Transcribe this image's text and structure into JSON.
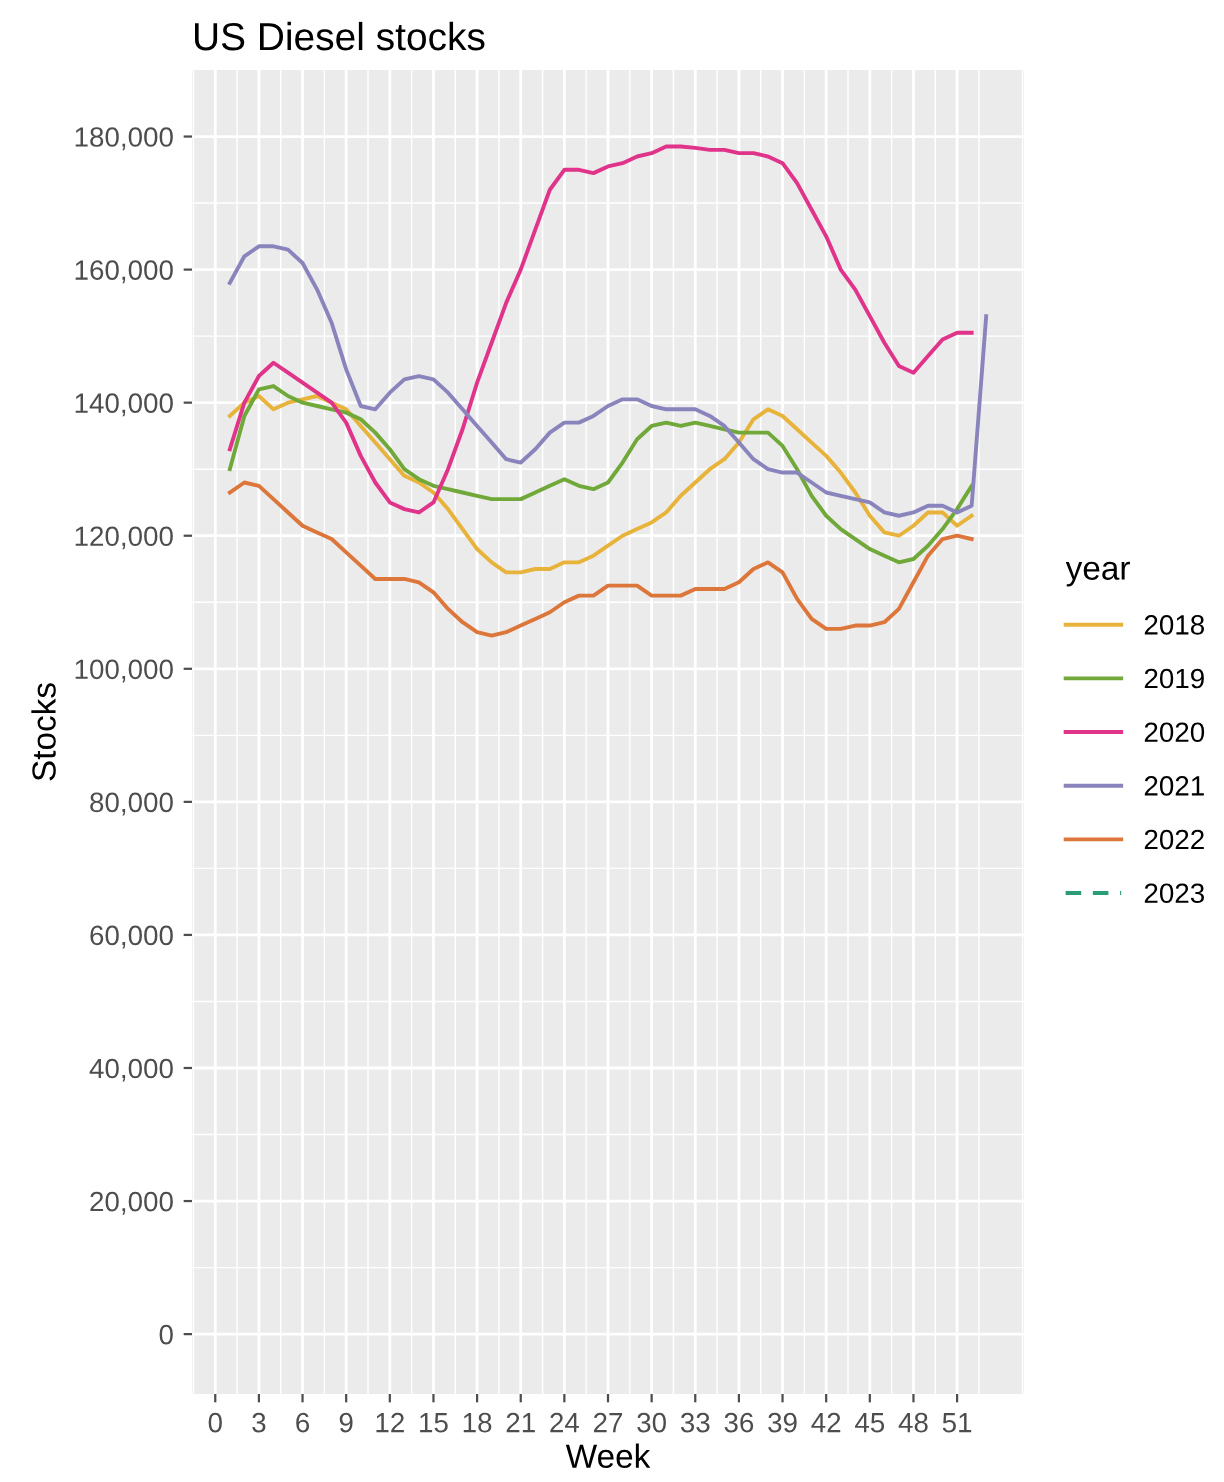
{
  "chart_data": {
    "type": "line",
    "title": "US Diesel stocks",
    "xlabel": "Week",
    "ylabel": "Stocks",
    "legend_title": "year",
    "legend": "right",
    "grid": true,
    "line_style": "solid",
    "x": [
      1,
      2,
      3,
      4,
      5,
      6,
      7,
      8,
      9,
      10,
      11,
      12,
      13,
      14,
      15,
      16,
      17,
      18,
      19,
      20,
      21,
      22,
      23,
      24,
      25,
      26,
      27,
      28,
      29,
      30,
      31,
      32,
      33,
      34,
      35,
      36,
      37,
      38,
      39,
      40,
      41,
      42,
      43,
      44,
      45,
      46,
      47,
      48,
      49,
      50,
      51,
      52
    ],
    "xlim": [
      -1.6,
      55.6
    ],
    "xticks": [
      0,
      3,
      6,
      9,
      12,
      15,
      18,
      21,
      24,
      27,
      30,
      33,
      36,
      39,
      42,
      45,
      48,
      51
    ],
    "ylim": [
      -9000,
      190000
    ],
    "yticks": [
      {
        "value": 0,
        "label": "0"
      },
      {
        "value": 20000,
        "label": "20,000"
      },
      {
        "value": 40000,
        "label": "40,000"
      },
      {
        "value": 60000,
        "label": "60,000"
      },
      {
        "value": 80000,
        "label": "80,000"
      },
      {
        "value": 100000,
        "label": "100,000"
      },
      {
        "value": 120000,
        "label": "120,000"
      },
      {
        "value": 140000,
        "label": "140,000"
      },
      {
        "value": 160000,
        "label": "160,000"
      },
      {
        "value": 180000,
        "label": "180,000"
      }
    ],
    "series": [
      {
        "name": "2018",
        "color": "#e8b33a",
        "values": [
          138000,
          140000,
          141000,
          139000,
          140000,
          140500,
          141000,
          140000,
          139000,
          136500,
          134000,
          131500,
          129000,
          128000,
          126500,
          124000,
          121000,
          118000,
          116000,
          114500,
          114500,
          115000,
          115000,
          116000,
          116000,
          117000,
          118500,
          120000,
          121000,
          122000,
          123500,
          126000,
          128000,
          130000,
          131500,
          134000,
          137500,
          139000,
          138000,
          136000,
          134000,
          132000,
          129500,
          126500,
          123000,
          120500,
          120000,
          121500,
          123500,
          123500,
          121500,
          123000
        ]
      },
      {
        "name": "2019",
        "color": "#71a83a",
        "values": [
          130000,
          138000,
          142000,
          142500,
          141000,
          140000,
          139500,
          139000,
          138500,
          137500,
          135500,
          133000,
          130000,
          128500,
          127500,
          127000,
          126500,
          126000,
          125500,
          125500,
          125500,
          126500,
          127500,
          128500,
          127500,
          127000,
          128000,
          131000,
          134500,
          136500,
          137000,
          136500,
          137000,
          136500,
          136000,
          135500,
          135500,
          135500,
          133500,
          130000,
          126000,
          123000,
          121000,
          119500,
          118000,
          117000,
          116000,
          116500,
          118500,
          121000,
          124000,
          127500
        ]
      },
      {
        "name": "2020",
        "color": "#e0338a",
        "values": [
          133000,
          140000,
          144000,
          146000,
          144500,
          143000,
          141500,
          140000,
          137000,
          132000,
          128000,
          125000,
          124000,
          123500,
          125000,
          130000,
          136000,
          143000,
          149000,
          155000,
          160000,
          166000,
          172000,
          175000,
          175000,
          174500,
          175500,
          176000,
          177000,
          177500,
          178500,
          178500,
          178300,
          178000,
          178000,
          177500,
          177500,
          177000,
          176000,
          173000,
          169000,
          165000,
          160000,
          157000,
          153000,
          149000,
          145500,
          144500,
          147000,
          149500,
          150500,
          150500
        ]
      },
      {
        "name": "2021",
        "color": "#8a84bd",
        "x": [
          1,
          2,
          3,
          4,
          5,
          6,
          7,
          8,
          9,
          10,
          11,
          12,
          13,
          14,
          15,
          16,
          17,
          18,
          19,
          20,
          21,
          22,
          23,
          24,
          25,
          26,
          27,
          28,
          29,
          30,
          31,
          32,
          33,
          34,
          35,
          36,
          37,
          38,
          39,
          40,
          41,
          42,
          43,
          44,
          45,
          46,
          47,
          48,
          49,
          50,
          51,
          52,
          53
        ],
        "values": [
          158000,
          162000,
          163500,
          163500,
          163000,
          161000,
          157000,
          152000,
          145000,
          139500,
          139000,
          141500,
          143500,
          144000,
          143500,
          141500,
          139000,
          136500,
          134000,
          131500,
          131000,
          133000,
          135500,
          137000,
          137000,
          138000,
          139500,
          140500,
          140500,
          139500,
          139000,
          139000,
          139000,
          138000,
          136500,
          134000,
          131500,
          130000,
          129500,
          129500,
          128000,
          126500,
          126000,
          125500,
          125000,
          123500,
          123000,
          123500,
          124500,
          124500,
          123500,
          124500,
          153000
        ]
      },
      {
        "name": "2022",
        "color": "#dc763a",
        "values": [
          126500,
          128000,
          127500,
          125500,
          123500,
          121500,
          120500,
          119500,
          117500,
          115500,
          113500,
          113500,
          113500,
          113000,
          111500,
          109000,
          107000,
          105500,
          105000,
          105500,
          106500,
          107500,
          108500,
          110000,
          111000,
          111000,
          112500,
          112500,
          112500,
          111000,
          111000,
          111000,
          112000,
          112000,
          112000,
          113000,
          115000,
          116000,
          114500,
          110500,
          107500,
          106000,
          106000,
          106500,
          106500,
          107000,
          109000,
          113000,
          117000,
          119500,
          120000,
          119500
        ]
      },
      {
        "name": "2023",
        "color": "#2a9d76",
        "line_style": "dashed",
        "values": [
          null,
          null,
          null,
          null,
          null,
          null,
          null,
          null,
          null,
          null,
          null,
          null,
          null,
          null,
          null,
          null,
          null,
          null,
          null,
          null,
          null,
          null,
          null,
          null,
          null,
          null,
          null,
          null,
          null,
          null,
          null,
          null,
          null,
          null,
          null,
          null,
          null,
          null,
          null,
          null,
          null,
          null,
          null,
          null,
          null,
          null,
          null,
          null,
          null,
          null,
          null,
          null
        ]
      }
    ]
  }
}
